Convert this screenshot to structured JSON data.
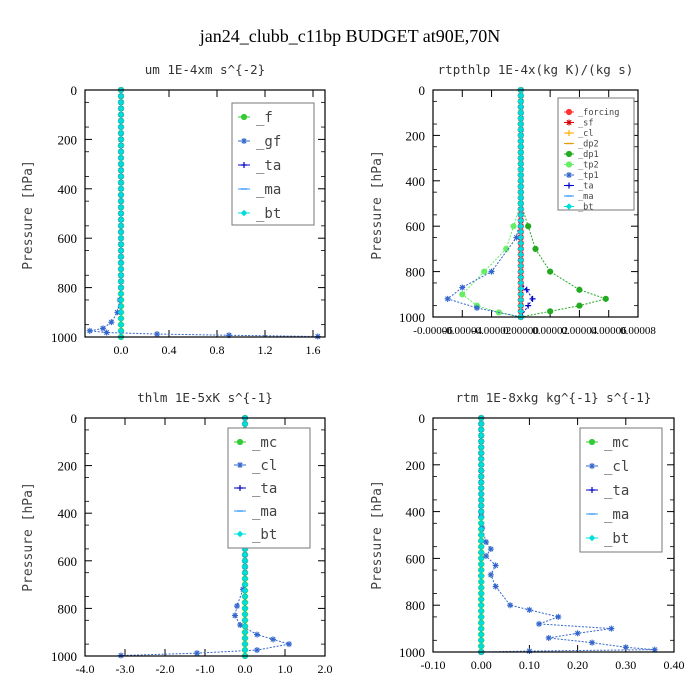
{
  "figure": {
    "title": "jan24_clubb_c11bp  BUDGET at90E,70N"
  },
  "chart_data": [
    {
      "type": "line",
      "title": "um  1E-4xm s^{-2}",
      "ylabel": "Pressure [hPa]",
      "xlim": [
        -0.3,
        1.7
      ],
      "ylim": [
        1000,
        0
      ],
      "xticks": [
        "0.0",
        "0.4",
        "0.8",
        "1.2",
        "1.6"
      ],
      "xtick_values": [
        0,
        0.4,
        0.8,
        1.2,
        1.6
      ],
      "yticks": [
        0,
        200,
        400,
        600,
        800,
        1000
      ],
      "legend": "top-right",
      "series": [
        {
          "name": "_f",
          "color": "#33cc33",
          "marker": "circle",
          "points": [
            [
              0,
              0
            ],
            [
              0,
              100
            ],
            [
              0,
              200
            ],
            [
              0,
              300
            ],
            [
              0,
              400
            ],
            [
              0,
              500
            ],
            [
              0,
              600
            ],
            [
              0,
              700
            ],
            [
              0,
              800
            ],
            [
              0,
              900
            ],
            [
              0,
              1000
            ]
          ]
        },
        {
          "name": "_gf",
          "color": "#3366cc",
          "marker": "star",
          "points": [
            [
              0,
              0
            ],
            [
              0,
              400
            ],
            [
              0,
              800
            ],
            [
              -0.01,
              850
            ],
            [
              -0.03,
              900
            ],
            [
              -0.08,
              940
            ],
            [
              -0.15,
              965
            ],
            [
              -0.26,
              975
            ],
            [
              -0.12,
              982
            ],
            [
              0.3,
              988
            ],
            [
              0.9,
              993
            ],
            [
              1.64,
              998
            ]
          ]
        },
        {
          "name": "_ta",
          "color": "#0000cc",
          "marker": "plus",
          "points": [
            [
              0,
              0
            ],
            [
              0,
              1000
            ]
          ]
        },
        {
          "name": "_ma",
          "color": "#3399ff",
          "marker": "dash",
          "points": [
            [
              0,
              0
            ],
            [
              0,
              1000
            ]
          ]
        },
        {
          "name": "_bt",
          "color": "#00dddd",
          "marker": "diamond",
          "points": [
            [
              0,
              0
            ],
            [
              0,
              1000
            ]
          ]
        }
      ]
    },
    {
      "type": "line",
      "title": "rtpthlp  1E-4x(kg K)/(kg s)",
      "ylabel": "Pressure [hPa]",
      "xlim": [
        -6e-05,
        8e-05
      ],
      "ylim": [
        1000,
        0
      ],
      "xticks": [
        "-0.00006",
        "-0.00004",
        "-0.00002",
        "0.00000",
        "0.00002",
        "0.00004",
        "0.00006",
        "0.00008"
      ],
      "xtick_values": [
        -6e-05,
        -4e-05,
        -2e-05,
        0,
        2e-05,
        4e-05,
        6e-05,
        8e-05
      ],
      "yticks": [
        0,
        200,
        400,
        600,
        800,
        1000
      ],
      "legend": "top-right",
      "series": [
        {
          "name": "_forcing",
          "color": "#ff3333",
          "marker": "circle",
          "points": [
            [
              0,
              0
            ],
            [
              0,
              1000
            ]
          ]
        },
        {
          "name": "_sf",
          "color": "#dd0000",
          "marker": "star",
          "points": [
            [
              0,
              0
            ],
            [
              0,
              1000
            ]
          ]
        },
        {
          "name": "_cl",
          "color": "#ffaa00",
          "marker": "plus",
          "points": [
            [
              0,
              0
            ],
            [
              0,
              1000
            ]
          ]
        },
        {
          "name": "_dp2",
          "color": "#e0a000",
          "marker": "dash",
          "points": [
            [
              0,
              0
            ],
            [
              0,
              1000
            ]
          ]
        },
        {
          "name": "_dp1",
          "color": "#22aa22",
          "marker": "circle",
          "points": [
            [
              0,
              0
            ],
            [
              0,
              500
            ],
            [
              5e-06,
              600
            ],
            [
              1e-05,
              700
            ],
            [
              2e-05,
              800
            ],
            [
              4e-05,
              880
            ],
            [
              5.8e-05,
              920
            ],
            [
              4e-05,
              950
            ],
            [
              2e-05,
              975
            ],
            [
              0,
              1000
            ]
          ]
        },
        {
          "name": "_tp2",
          "color": "#66ee66",
          "marker": "circle",
          "points": [
            [
              0,
              0
            ],
            [
              0,
              500
            ],
            [
              -5e-06,
              600
            ],
            [
              -1e-05,
              700
            ],
            [
              -2.5e-05,
              800
            ],
            [
              -4e-05,
              900
            ],
            [
              -3e-05,
              950
            ],
            [
              -1.5e-05,
              980
            ],
            [
              0,
              1000
            ]
          ]
        },
        {
          "name": "_tp1",
          "color": "#3366cc",
          "marker": "star",
          "points": [
            [
              0,
              0
            ],
            [
              0,
              550
            ],
            [
              -3e-06,
              650
            ],
            [
              -2e-05,
              800
            ],
            [
              -4e-05,
              870
            ],
            [
              -5e-05,
              920
            ],
            [
              -3e-05,
              960
            ],
            [
              0,
              1000
            ]
          ]
        },
        {
          "name": "_ta",
          "color": "#0000cc",
          "marker": "plus",
          "points": [
            [
              0,
              0
            ],
            [
              0,
              850
            ],
            [
              4e-06,
              880
            ],
            [
              8e-06,
              920
            ],
            [
              5e-06,
              950
            ],
            [
              0,
              1000
            ]
          ]
        },
        {
          "name": "_ma",
          "color": "#3399ff",
          "marker": "dash",
          "points": [
            [
              0,
              0
            ],
            [
              0,
              1000
            ]
          ]
        },
        {
          "name": "_bt",
          "color": "#00dddd",
          "marker": "diamond",
          "points": [
            [
              0,
              0
            ],
            [
              0,
              1000
            ]
          ]
        }
      ]
    },
    {
      "type": "line",
      "title": "thlm  1E-5xK s^{-1}",
      "ylabel": "Pressure [hPa]",
      "xlim": [
        -4.0,
        2.0
      ],
      "ylim": [
        1000,
        0
      ],
      "xticks": [
        "-4.0",
        "-3.0",
        "-2.0",
        "-1.0",
        "0.0",
        "1.0",
        "2.0"
      ],
      "xtick_values": [
        -4,
        -3,
        -2,
        -1,
        0,
        1,
        2
      ],
      "yticks": [
        0,
        200,
        400,
        600,
        800,
        1000
      ],
      "legend": "top-right",
      "series": [
        {
          "name": "_mc",
          "color": "#33cc33",
          "marker": "circle",
          "points": [
            [
              0,
              0
            ],
            [
              0,
              100
            ],
            [
              0,
              200
            ],
            [
              0,
              300
            ],
            [
              0,
              400
            ],
            [
              0,
              500
            ],
            [
              0,
              600
            ],
            [
              0,
              700
            ],
            [
              0,
              800
            ],
            [
              0,
              900
            ],
            [
              0,
              1000
            ]
          ]
        },
        {
          "name": "_cl",
          "color": "#3366cc",
          "marker": "star",
          "points": [
            [
              0,
              0
            ],
            [
              0,
              650
            ],
            [
              -0.05,
              720
            ],
            [
              -0.2,
              790
            ],
            [
              -0.25,
              830
            ],
            [
              -0.12,
              870
            ],
            [
              0.3,
              910
            ],
            [
              0.7,
              930
            ],
            [
              1.1,
              950
            ],
            [
              0.3,
              975
            ],
            [
              -1.2,
              988
            ],
            [
              -3.1,
              998
            ]
          ]
        },
        {
          "name": "_ta",
          "color": "#0000cc",
          "marker": "plus",
          "points": [
            [
              0,
              0
            ],
            [
              0,
              1000
            ]
          ]
        },
        {
          "name": "_ma",
          "color": "#3399ff",
          "marker": "dash",
          "points": [
            [
              0,
              0
            ],
            [
              0,
              1000
            ]
          ]
        },
        {
          "name": "_bt",
          "color": "#00dddd",
          "marker": "diamond",
          "points": [
            [
              0,
              0
            ],
            [
              0,
              1000
            ]
          ]
        }
      ]
    },
    {
      "type": "line",
      "title": "rtm  1E-8xkg kg^{-1} s^{-1}",
      "ylabel": "Pressure [hPa]",
      "xlim": [
        -0.1,
        0.4
      ],
      "ylim": [
        1000,
        0
      ],
      "xticks": [
        "-0.10",
        "0.00",
        "0.10",
        "0.20",
        "0.30",
        "0.40"
      ],
      "xtick_values": [
        -0.1,
        0,
        0.1,
        0.2,
        0.3,
        0.4
      ],
      "yticks": [
        0,
        200,
        400,
        600,
        800,
        1000
      ],
      "legend": "top-right",
      "series": [
        {
          "name": "_mc",
          "color": "#33cc33",
          "marker": "circle",
          "points": [
            [
              0,
              0
            ],
            [
              0,
              100
            ],
            [
              0,
              200
            ],
            [
              0,
              300
            ],
            [
              0,
              400
            ],
            [
              0,
              500
            ],
            [
              0,
              600
            ],
            [
              0,
              700
            ],
            [
              0,
              800
            ],
            [
              0,
              900
            ],
            [
              0,
              1000
            ]
          ]
        },
        {
          "name": "_cl",
          "color": "#3366cc",
          "marker": "star",
          "points": [
            [
              0,
              0
            ],
            [
              0,
              420
            ],
            [
              0.002,
              470
            ],
            [
              0.01,
              530
            ],
            [
              0.02,
              560
            ],
            [
              0.01,
              590
            ],
            [
              0.03,
              630
            ],
            [
              0.02,
              670
            ],
            [
              0.03,
              720
            ],
            [
              0.06,
              800
            ],
            [
              0.1,
              820
            ],
            [
              0.16,
              850
            ],
            [
              0.12,
              880
            ],
            [
              0.27,
              900
            ],
            [
              0.2,
              920
            ],
            [
              0.14,
              940
            ],
            [
              0.23,
              960
            ],
            [
              0.3,
              980
            ],
            [
              0.36,
              990
            ],
            [
              0.1,
              996
            ],
            [
              0,
              1000
            ]
          ]
        },
        {
          "name": "_ta",
          "color": "#0000cc",
          "marker": "plus",
          "points": [
            [
              0,
              0
            ],
            [
              0,
              1000
            ]
          ]
        },
        {
          "name": "_ma",
          "color": "#3399ff",
          "marker": "dash",
          "points": [
            [
              0,
              0
            ],
            [
              0,
              1000
            ]
          ]
        },
        {
          "name": "_bt",
          "color": "#00dddd",
          "marker": "diamond",
          "points": [
            [
              0,
              0
            ],
            [
              0,
              1000
            ]
          ]
        }
      ]
    }
  ]
}
